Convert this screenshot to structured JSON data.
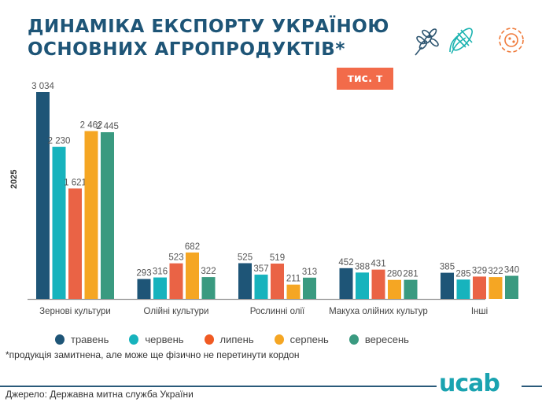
{
  "header": {
    "title_line1": "ДИНАМІКА ЕКСПОРТУ УКРАЇНОЮ",
    "title_line2": "ОСНОВНИХ АГРОПРОДУКТІВ*",
    "unit_badge": "тис. т",
    "icons": [
      "wheat-icon",
      "corn-icon",
      "sunflower-icon"
    ]
  },
  "footer": {
    "note": "*продукція замитнена, але може ще фізично не перетинути кордон",
    "source": "Джерело: Державна митна служба України",
    "logo": "ucab"
  },
  "chart_data": {
    "type": "bar",
    "title": "ДИНАМІКА ЕКСПОРТУ УКРАЇНОЮ ОСНОВНИХ АГРОПРОДУКТІВ*",
    "ylabel": "2025",
    "xlabel": "",
    "unit": "тис. т",
    "categories": [
      "Зернові культури",
      "Олійні культури",
      "Рослинні олії",
      "Макуха олійних культур",
      "Інші"
    ],
    "series": [
      {
        "name": "травень",
        "color": "#1e5577",
        "values": [
          3034,
          293,
          525,
          452,
          385
        ],
        "labels": [
          "3 034",
          "293",
          "525",
          "452",
          "385"
        ]
      },
      {
        "name": "червень",
        "color": "#17b3bd",
        "values": [
          2230,
          316,
          357,
          388,
          285
        ],
        "labels": [
          "2 230",
          "316",
          "357",
          "388",
          "285"
        ]
      },
      {
        "name": "липень",
        "color": "#ea6345",
        "values": [
          1621,
          523,
          519,
          431,
          329
        ],
        "labels": [
          "1 621",
          "523",
          "519",
          "431",
          "329"
        ]
      },
      {
        "name": "серпень",
        "color": "#f5a623",
        "values": [
          2462,
          682,
          211,
          280,
          322
        ],
        "labels": [
          "2 462",
          "682",
          "211",
          "280",
          "322"
        ]
      },
      {
        "name": "вересень",
        "color": "#3a9a80",
        "values": [
          2445,
          322,
          313,
          281,
          340
        ],
        "labels": [
          "2 445",
          "322",
          "313",
          "281",
          "340"
        ]
      }
    ],
    "ylim": [
      0,
      3034
    ],
    "grid": false,
    "legend": "bottom"
  }
}
